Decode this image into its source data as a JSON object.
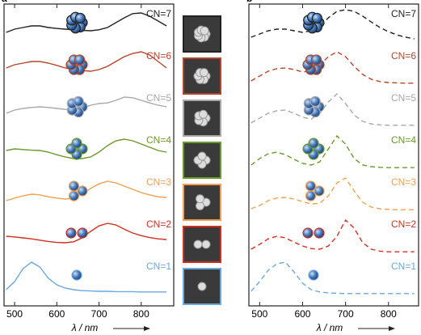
{
  "chart_data": [
    {
      "type": "line",
      "label": "a",
      "line_style": "solid",
      "xlabel": "λ / nm",
      "xlim": [
        475,
        877
      ],
      "xticks": [
        500,
        600,
        700,
        800
      ],
      "x": [
        480,
        500,
        520,
        540,
        560,
        580,
        600,
        620,
        640,
        660,
        680,
        700,
        720,
        740,
        760,
        780,
        800,
        820,
        840,
        860
      ],
      "series": [
        {
          "name": "CN=7",
          "color": "#222222",
          "values": [
            0.3,
            0.4,
            0.45,
            0.5,
            0.5,
            0.45,
            0.42,
            0.4,
            0.38,
            0.36,
            0.35,
            0.38,
            0.45,
            0.6,
            0.75,
            0.88,
            0.9,
            0.8,
            0.65,
            0.5
          ]
        },
        {
          "name": "CN=6",
          "color": "#b5452a",
          "values": [
            0.5,
            0.6,
            0.65,
            0.7,
            0.7,
            0.65,
            0.58,
            0.5,
            0.45,
            0.42,
            0.4,
            0.45,
            0.55,
            0.7,
            0.85,
            0.95,
            1.0,
            0.9,
            0.7,
            0.5
          ]
        },
        {
          "name": "CN=5",
          "color": "#a8a8a8",
          "values": [
            0.4,
            0.5,
            0.55,
            0.58,
            0.6,
            0.58,
            0.55,
            0.52,
            0.5,
            0.55,
            0.65,
            0.7,
            0.72,
            0.8,
            0.9,
            0.88,
            0.8,
            0.72,
            0.65,
            0.6
          ]
        },
        {
          "name": "CN=4",
          "color": "#6a9a2a",
          "values": [
            0.55,
            0.6,
            0.58,
            0.56,
            0.55,
            0.5,
            0.42,
            0.35,
            0.3,
            0.3,
            0.35,
            0.5,
            0.7,
            0.85,
            0.9,
            0.85,
            0.75,
            0.65,
            0.55,
            0.5
          ]
        },
        {
          "name": "CN=3",
          "color": "#f0a050",
          "values": [
            0.3,
            0.38,
            0.45,
            0.5,
            0.48,
            0.42,
            0.38,
            0.35,
            0.38,
            0.5,
            0.68,
            0.82,
            0.9,
            0.85,
            0.75,
            0.65,
            0.55,
            0.48,
            0.42,
            0.4
          ]
        },
        {
          "name": "CN=2",
          "color": "#d03020",
          "values": [
            0.5,
            0.48,
            0.45,
            0.42,
            0.38,
            0.34,
            0.31,
            0.3,
            0.33,
            0.45,
            0.65,
            0.82,
            0.9,
            0.85,
            0.72,
            0.6,
            0.52,
            0.46,
            0.42,
            0.4
          ]
        },
        {
          "name": "CN=1",
          "color": "#6aa8e0",
          "values": [
            0.15,
            0.4,
            0.8,
            1.0,
            0.85,
            0.5,
            0.3,
            0.2,
            0.15,
            0.12,
            0.11,
            0.1,
            0.1,
            0.09,
            0.09,
            0.09,
            0.08,
            0.08,
            0.08,
            0.08
          ]
        }
      ]
    },
    {
      "type": "line",
      "label": "b",
      "line_style": "dashed",
      "xlabel": "λ / nm",
      "xlim": [
        475,
        870
      ],
      "xticks": [
        500,
        600,
        700,
        800
      ],
      "x": [
        480,
        500,
        520,
        540,
        560,
        580,
        600,
        620,
        640,
        660,
        680,
        700,
        720,
        740,
        760,
        780,
        800,
        820,
        840,
        860
      ],
      "series": [
        {
          "name": "CN=7",
          "color": "#222222",
          "values": [
            0.15,
            0.25,
            0.35,
            0.4,
            0.4,
            0.35,
            0.3,
            0.35,
            0.5,
            0.75,
            0.95,
            1.0,
            0.95,
            0.8,
            0.62,
            0.45,
            0.32,
            0.22,
            0.15,
            0.1
          ]
        },
        {
          "name": "CN=6",
          "color": "#b5452a",
          "values": [
            0.1,
            0.25,
            0.4,
            0.48,
            0.5,
            0.45,
            0.38,
            0.4,
            0.6,
            0.85,
            1.0,
            0.85,
            0.55,
            0.3,
            0.15,
            0.08,
            0.05,
            0.04,
            0.03,
            0.03
          ]
        },
        {
          "name": "CN=5",
          "color": "#a8a8a8",
          "values": [
            0.1,
            0.25,
            0.4,
            0.48,
            0.5,
            0.4,
            0.28,
            0.22,
            0.4,
            0.75,
            1.0,
            0.7,
            0.35,
            0.15,
            0.07,
            0.04,
            0.03,
            0.03,
            0.03,
            0.03
          ]
        },
        {
          "name": "CN=4",
          "color": "#6a9a2a",
          "values": [
            0.1,
            0.3,
            0.45,
            0.5,
            0.42,
            0.28,
            0.15,
            0.1,
            0.2,
            0.6,
            1.0,
            0.75,
            0.3,
            0.1,
            0.05,
            0.03,
            0.02,
            0.02,
            0.02,
            0.02
          ]
        },
        {
          "name": "CN=3",
          "color": "#f0a050",
          "values": [
            0.05,
            0.15,
            0.3,
            0.38,
            0.4,
            0.35,
            0.27,
            0.2,
            0.22,
            0.45,
            0.85,
            1.0,
            0.6,
            0.25,
            0.1,
            0.05,
            0.03,
            0.02,
            0.02,
            0.02
          ]
        },
        {
          "name": "CN=2",
          "color": "#d03020",
          "values": [
            0.1,
            0.25,
            0.42,
            0.5,
            0.45,
            0.32,
            0.2,
            0.12,
            0.1,
            0.2,
            0.5,
            1.0,
            0.75,
            0.3,
            0.1,
            0.04,
            0.02,
            0.02,
            0.02,
            0.02
          ]
        },
        {
          "name": "CN=1",
          "color": "#6aa8e0",
          "values": [
            0.1,
            0.4,
            0.75,
            0.95,
            1.0,
            0.7,
            0.35,
            0.15,
            0.08,
            0.05,
            0.04,
            0.03,
            0.03,
            0.03,
            0.03,
            0.03,
            0.03,
            0.03,
            0.03,
            0.03
          ]
        }
      ]
    }
  ]
}
